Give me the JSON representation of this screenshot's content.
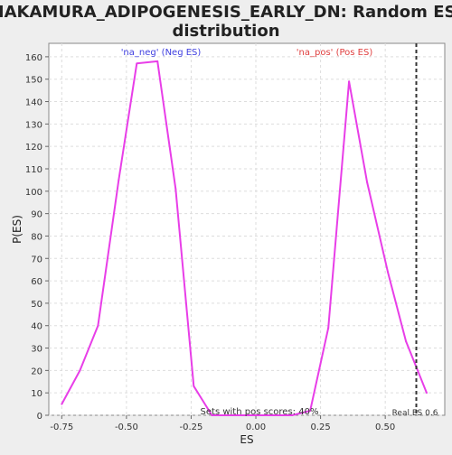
{
  "chart_data": {
    "type": "line",
    "title_lines": [
      "NAKAMURA_ADIPOGENESIS_EARLY_DN: Random ES",
      "distribution"
    ],
    "xlabel": "ES",
    "ylabel": "P(ES)",
    "xlim": [
      -0.8,
      0.73
    ],
    "ylim": [
      0,
      166
    ],
    "x_ticks": [
      -0.75,
      -0.5,
      -0.25,
      0.0,
      0.25,
      0.5
    ],
    "x_tick_labels": [
      "-0.75",
      "-0.50",
      "-0.25",
      "0.00",
      "0.25",
      "0.50"
    ],
    "y_ticks": [
      0,
      10,
      20,
      30,
      40,
      50,
      60,
      70,
      80,
      90,
      100,
      110,
      120,
      130,
      140,
      150,
      160
    ],
    "y_tick_labels": [
      "0",
      "10",
      "20",
      "30",
      "40",
      "50",
      "60",
      "70",
      "80",
      "90",
      "100",
      "110",
      "120",
      "130",
      "140",
      "150",
      "160"
    ],
    "grid": true,
    "series": [
      {
        "color": "#e83ee8",
        "x": [
          -0.75,
          -0.68,
          -0.61,
          -0.53,
          -0.46,
          -0.38,
          -0.31,
          -0.24,
          -0.17,
          -0.1,
          0.14,
          0.21,
          0.28,
          0.36,
          0.43,
          0.51,
          0.58,
          0.66
        ],
        "y": [
          5,
          20,
          40,
          105,
          157,
          158,
          101,
          13,
          0,
          0,
          0,
          2,
          39,
          149,
          104,
          64,
          33,
          10
        ]
      }
    ],
    "annotations": {
      "neg_label": "'na_neg' (Neg ES)",
      "neg_color": "#4040e0",
      "pos_label": "'na_pos' (Pos ES)",
      "pos_color": "#e04040",
      "pos_scores_text": "Sets with pos scores: 40%",
      "real_es_label": "Real ES 0.6",
      "real_es_value": 0.62
    }
  }
}
